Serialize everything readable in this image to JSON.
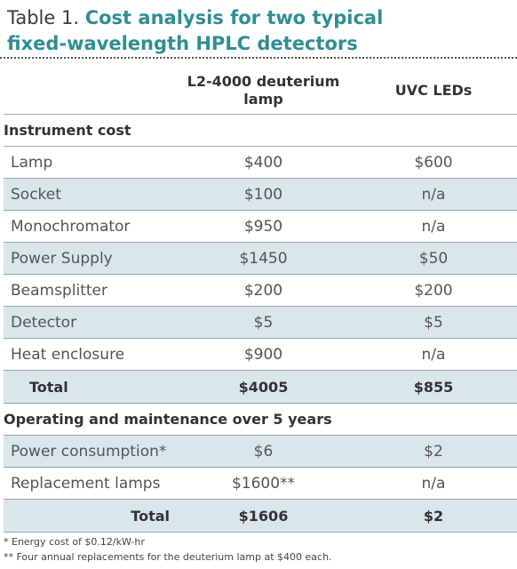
{
  "title": {
    "prefix": "Table 1.",
    "line1": "Cost analysis for two typical",
    "line2": "fixed-wavelength HPLC detectors"
  },
  "table": {
    "headers": [
      "",
      "L2-4000 deuterium lamp",
      "UVC LEDs"
    ],
    "sections": [
      {
        "label": "Instrument cost",
        "rows": [
          {
            "item": "Lamp",
            "deuterium": "$400",
            "uvc": "$600"
          },
          {
            "item": "Socket",
            "deuterium": "$100",
            "uvc": "n/a"
          },
          {
            "item": "Monochromator",
            "deuterium": "$950",
            "uvc": "n/a"
          },
          {
            "item": "Power Supply",
            "deuterium": "$1450",
            "uvc": "$50"
          },
          {
            "item": "Beamsplitter",
            "deuterium": "$200",
            "uvc": "$200"
          },
          {
            "item": "Detector",
            "deuterium": "$5",
            "uvc": "$5"
          },
          {
            "item": "Heat enclosure",
            "deuterium": "$900",
            "uvc": "n/a"
          }
        ],
        "total": {
          "label": "Total",
          "deuterium": "$4005",
          "uvc": "$855"
        }
      },
      {
        "label": "Operating and maintenance over 5 years",
        "rows": [
          {
            "item": "Power consumption*",
            "deuterium": "$6",
            "uvc": "$2"
          },
          {
            "item": "Replacement lamps",
            "deuterium": "$1600**",
            "uvc": "n/a"
          }
        ],
        "total": {
          "label": "Total",
          "deuterium": "$1606",
          "uvc": "$2"
        }
      }
    ]
  },
  "footnotes": [
    "* Energy cost of $0.12/kW-hr",
    "** Four annual replacements for the deuterium lamp at $400 each."
  ],
  "colors": {
    "title_accent": "#2f8f94",
    "row_shade": "#d9e6ea",
    "rule": "#9aa5a8"
  }
}
